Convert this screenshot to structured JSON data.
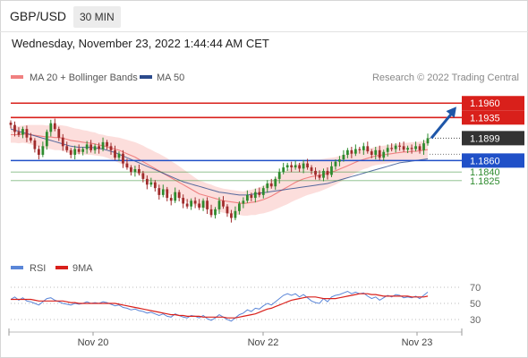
{
  "header": {
    "symbol": "GBP/USD",
    "timeframe": "30 MIN",
    "datetime": "Wednesday, November 23, 2022 1:44:44 AM CET"
  },
  "colors": {
    "bull": "#2e8b2e",
    "bear": "#a02c2c",
    "ma20": "#f08080",
    "ma50": "#2b4a8c",
    "band": "#fcd8d6",
    "resistance": "#d9201b",
    "support": "#2050c8",
    "minor_support": "#2e8b2e",
    "rsi": "#5a86d8",
    "rsi_ma": "#d9201b",
    "arrow": "#1e56a8"
  },
  "chart_data": [
    {
      "type": "candlestick",
      "legend": [
        {
          "label": "MA 20 + Bollinger Bands",
          "color": "#f08080"
        },
        {
          "label": "MA 50",
          "color": "#2b4a8c"
        }
      ],
      "credit": "Research © 2022 Trading Central",
      "x_ticks": [
        "Nov 20",
        "Nov 22",
        "Nov 23"
      ],
      "ylim": [
        1.17,
        1.199
      ],
      "current_price": 1.1899,
      "levels": [
        {
          "label": "1.1960",
          "value": 1.196,
          "kind": "resistance"
        },
        {
          "label": "1.1935",
          "value": 1.1935,
          "kind": "resistance"
        },
        {
          "label": "1.1860",
          "value": 1.186,
          "kind": "support"
        },
        {
          "label": "1.1840",
          "value": 1.184,
          "kind": "minor_support"
        },
        {
          "label": "1.1825",
          "value": 1.1825,
          "kind": "minor_support"
        }
      ],
      "projection": {
        "from": 1.1899,
        "to": 1.196
      },
      "close": [
        1.1922,
        1.191,
        1.1905,
        1.1915,
        1.19,
        1.1895,
        1.188,
        1.187,
        1.1885,
        1.191,
        1.1925,
        1.1915,
        1.19,
        1.1885,
        1.1878,
        1.187,
        1.188,
        1.1875,
        1.188,
        1.1888,
        1.1878,
        1.1885,
        1.188,
        1.1892,
        1.1885,
        1.1878,
        1.1865,
        1.1872,
        1.1855,
        1.1848,
        1.184,
        1.1845,
        1.1838,
        1.1828,
        1.1818,
        1.1822,
        1.1812,
        1.18,
        1.181,
        1.1795,
        1.179,
        1.1805,
        1.1795,
        1.1785,
        1.178,
        1.179,
        1.1785,
        1.1778,
        1.179,
        1.1775,
        1.1765,
        1.1775,
        1.179,
        1.178,
        1.1768,
        1.176,
        1.1772,
        1.1785,
        1.179,
        1.18,
        1.1795,
        1.1805,
        1.18,
        1.1812,
        1.182,
        1.1815,
        1.1828,
        1.184,
        1.1848,
        1.1852,
        1.1848,
        1.1852,
        1.1846,
        1.1855,
        1.1848,
        1.1842,
        1.1835,
        1.183,
        1.1842,
        1.1835,
        1.185,
        1.1858,
        1.1862,
        1.187,
        1.1878,
        1.1872,
        1.188,
        1.1878,
        1.1885,
        1.1876,
        1.187,
        1.1878,
        1.1865,
        1.1875,
        1.1882,
        1.188,
        1.1886,
        1.1885,
        1.1879,
        1.1882,
        1.188,
        1.1885,
        1.1878,
        1.189,
        1.1899
      ],
      "ma20": [
        1.1905,
        1.1905,
        1.1905,
        1.1906,
        1.1906,
        1.1905,
        1.1904,
        1.1903,
        1.1902,
        1.1901,
        1.1901,
        1.19,
        1.19,
        1.1899,
        1.1897,
        1.1895,
        1.1894,
        1.1893,
        1.1892,
        1.1891,
        1.189,
        1.1889,
        1.1887,
        1.1886,
        1.1884,
        1.1882,
        1.188,
        1.1878,
        1.1875,
        1.1872,
        1.1869,
        1.1866,
        1.1862,
        1.1858,
        1.1854,
        1.185,
        1.1846,
        1.1842,
        1.1838,
        1.1834,
        1.183,
        1.1826,
        1.1822,
        1.1818,
        1.1814,
        1.181,
        1.1806,
        1.1802,
        1.18,
        1.1798,
        1.1796,
        1.1794,
        1.1792,
        1.179,
        1.1789,
        1.1788,
        1.1787,
        1.1786,
        1.1785,
        1.1786,
        1.1787,
        1.1788,
        1.179,
        1.1792,
        1.1795,
        1.1798,
        1.1802,
        1.1806,
        1.181,
        1.1814,
        1.1818,
        1.1822,
        1.1825,
        1.1828,
        1.183,
        1.1832,
        1.1833,
        1.1834,
        1.1836,
        1.1838,
        1.184,
        1.1842,
        1.1845,
        1.1848,
        1.1851,
        1.1854,
        1.1857,
        1.186,
        1.1862,
        1.1864,
        1.1866,
        1.1868,
        1.1869,
        1.187,
        1.1871,
        1.1872,
        1.1873,
        1.1874,
        1.1875,
        1.1875,
        1.1876,
        1.1876,
        1.1877,
        1.1878,
        1.1879
      ],
      "ma50": [
        1.1915,
        1.1913,
        1.1911,
        1.1909,
        1.1907,
        1.1905,
        1.1903,
        1.1901,
        1.1899,
        1.1897,
        1.1895,
        1.1893,
        1.1891,
        1.1889,
        1.1887,
        1.1885,
        1.1884,
        1.1883,
        1.1883,
        1.1883,
        1.1883,
        1.1882,
        1.1881,
        1.188,
        1.1878,
        1.1876,
        1.1874,
        1.1871,
        1.1868,
        1.1865,
        1.1862,
        1.1859,
        1.1856,
        1.1853,
        1.185,
        1.1847,
        1.1844,
        1.1841,
        1.1838,
        1.1835,
        1.1832,
        1.1829,
        1.1826,
        1.1823,
        1.1821,
        1.1819,
        1.1817,
        1.1815,
        1.1813,
        1.1811,
        1.1809,
        1.1807,
        1.1805,
        1.1804,
        1.1803,
        1.1802,
        1.1801,
        1.18,
        1.18,
        1.18,
        1.1801,
        1.1802,
        1.1803,
        1.1804,
        1.1805,
        1.1806,
        1.1807,
        1.1808,
        1.1809,
        1.181,
        1.1811,
        1.1812,
        1.1813,
        1.1814,
        1.1815,
        1.1816,
        1.1817,
        1.1818,
        1.1819,
        1.182,
        1.1822,
        1.1824,
        1.1826,
        1.1828,
        1.183,
        1.1832,
        1.1834,
        1.1836,
        1.1838,
        1.184,
        1.1842,
        1.1844,
        1.1846,
        1.1848,
        1.185,
        1.1852,
        1.1854,
        1.1856,
        1.1857,
        1.1858,
        1.1859,
        1.186,
        1.1861,
        1.1862,
        1.1863
      ],
      "band_halfwidth": [
        0.0014,
        0.0014,
        0.0015,
        0.0015,
        0.0016,
        0.0017,
        0.0018,
        0.0019,
        0.002,
        0.002,
        0.0021,
        0.0022,
        0.0022,
        0.0022,
        0.0023,
        0.0023,
        0.0022,
        0.0022,
        0.0021,
        0.0021,
        0.002,
        0.002,
        0.0019,
        0.0019,
        0.0019,
        0.002,
        0.0021,
        0.0022,
        0.0023,
        0.0024,
        0.0025,
        0.0026,
        0.0027,
        0.0028,
        0.0028,
        0.0029,
        0.0029,
        0.003,
        0.003,
        0.003,
        0.0029,
        0.0029,
        0.0028,
        0.0027,
        0.0026,
        0.0025,
        0.0024,
        0.0023,
        0.0023,
        0.0022,
        0.0022,
        0.0021,
        0.0021,
        0.0021,
        0.0021,
        0.0021,
        0.0021,
        0.0021,
        0.0021,
        0.0022,
        0.0022,
        0.0023,
        0.0023,
        0.0024,
        0.0025,
        0.0026,
        0.0027,
        0.0028,
        0.0029,
        0.003,
        0.003,
        0.0031,
        0.0031,
        0.0031,
        0.003,
        0.003,
        0.0029,
        0.0028,
        0.0027,
        0.0026,
        0.0025,
        0.0024,
        0.0023,
        0.0022,
        0.0021,
        0.002,
        0.0019,
        0.0018,
        0.0017,
        0.0017,
        0.0016,
        0.0016,
        0.0016,
        0.0016,
        0.0016,
        0.0016,
        0.0016,
        0.0016,
        0.0016,
        0.0016,
        0.0016,
        0.0016,
        0.0016,
        0.0016,
        0.0017
      ]
    },
    {
      "type": "line",
      "legend": [
        {
          "label": "RSI",
          "color": "#5a86d8"
        },
        {
          "label": "9MA",
          "color": "#d9201b"
        }
      ],
      "ylim": [
        20,
        80
      ],
      "y_ticks": [
        "70",
        "50",
        "30"
      ],
      "rsi": [
        55,
        58,
        54,
        57,
        53,
        52,
        50,
        48,
        52,
        56,
        57,
        54,
        52,
        50,
        49,
        48,
        50,
        49,
        50,
        52,
        50,
        51,
        50,
        52,
        51,
        49,
        47,
        48,
        45,
        44,
        42,
        43,
        41,
        40,
        38,
        39,
        37,
        35,
        37,
        34,
        33,
        37,
        35,
        33,
        32,
        35,
        34,
        32,
        35,
        31,
        29,
        32,
        36,
        33,
        30,
        28,
        32,
        36,
        38,
        42,
        40,
        44,
        43,
        47,
        50,
        48,
        52,
        56,
        60,
        62,
        60,
        62,
        58,
        61,
        57,
        53,
        51,
        50,
        56,
        52,
        58,
        60,
        61,
        63,
        65,
        62,
        64,
        62,
        63,
        59,
        56,
        58,
        54,
        57,
        60,
        58,
        61,
        60,
        57,
        58,
        57,
        59,
        56,
        60,
        64
      ],
      "rsi_ma": [
        55,
        55,
        55,
        55,
        55,
        55,
        54,
        53,
        53,
        53,
        53,
        53,
        53,
        53,
        52,
        51,
        51,
        50,
        50,
        50,
        50,
        50,
        50,
        50,
        50,
        50,
        50,
        49,
        48,
        47,
        46,
        45,
        44,
        43,
        42,
        41,
        40,
        39,
        38,
        37,
        36,
        36,
        35,
        35,
        34,
        34,
        34,
        34,
        33,
        33,
        33,
        33,
        33,
        33,
        32,
        32,
        32,
        33,
        34,
        35,
        36,
        37,
        39,
        41,
        43,
        44,
        46,
        48,
        50,
        52,
        54,
        55,
        56,
        57,
        58,
        58,
        58,
        57,
        56,
        56,
        56,
        56,
        57,
        58,
        59,
        60,
        61,
        62,
        62,
        62,
        61,
        61,
        60,
        59,
        59,
        59,
        59,
        59,
        59,
        59,
        58,
        58,
        58,
        58,
        59
      ]
    }
  ]
}
